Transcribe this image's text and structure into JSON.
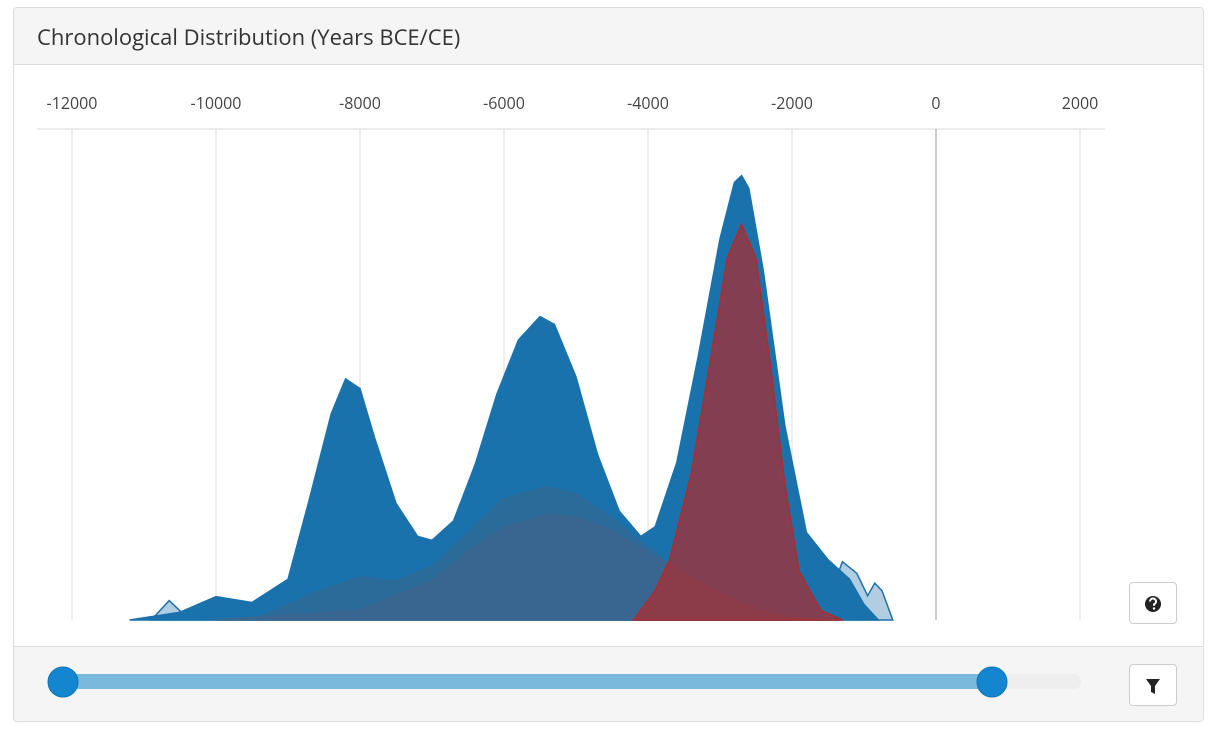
{
  "chart_data": {
    "type": "area",
    "title": "Chronological Distribution (Years BCE/CE)",
    "xlim": [
      -12000,
      2000
    ],
    "xticks": [
      -12000,
      -10000,
      -8000,
      -6000,
      -4000,
      -2000,
      0,
      2000
    ],
    "ylim": [
      0,
      470
    ],
    "grid": true,
    "series": [
      {
        "color": "#1f6fa8",
        "opacity": 0.35,
        "x": [
          -10900,
          -10650,
          -10450,
          -10200,
          -1600,
          -1300,
          -1100,
          -950,
          -850,
          -750,
          -600
        ],
        "values": [
          0,
          20,
          6,
          0,
          0,
          60,
          48,
          25,
          38,
          30,
          0
        ]
      },
      {
        "color": "#1a72ad",
        "opacity": 1,
        "x": [
          -11200,
          -10500,
          -10000,
          -9500,
          -9000,
          -8700,
          -8400,
          -8200,
          -8000,
          -7800,
          -7500,
          -7200,
          -7000,
          -6700,
          -6400,
          -6100,
          -5800,
          -5500,
          -5300,
          -5000,
          -4700,
          -4400,
          -4100,
          -3900,
          -3600,
          -3300,
          -3000,
          -2800,
          -2700,
          -2600,
          -2400,
          -2100,
          -1800,
          -1500,
          -1200,
          -1000,
          -800
        ],
        "values": [
          0,
          8,
          24,
          18,
          42,
          125,
          212,
          248,
          238,
          188,
          120,
          86,
          82,
          102,
          160,
          232,
          288,
          312,
          304,
          250,
          170,
          112,
          86,
          96,
          162,
          272,
          392,
          450,
          457,
          444,
          360,
          200,
          90,
          62,
          42,
          16,
          0
        ]
      },
      {
        "color": "#2d6a98",
        "opacity": 0.9,
        "x": [
          -9500,
          -8500,
          -8000,
          -7500,
          -7000,
          -6500,
          -6000,
          -5400,
          -5000,
          -4500,
          -4000,
          -3500,
          -3000,
          -2500,
          -2000
        ],
        "values": [
          0,
          32,
          44,
          40,
          55,
          90,
          125,
          137,
          130,
          105,
          75,
          45,
          25,
          8,
          0
        ]
      },
      {
        "color": "#3a6690",
        "opacity": 0.9,
        "x": [
          -10000,
          -8000,
          -7000,
          -6500,
          -6000,
          -5400,
          -5000,
          -4500,
          -4000,
          -3500,
          -3000,
          -2500,
          -2000,
          -1500
        ],
        "values": [
          0,
          10,
          40,
          70,
          95,
          109,
          106,
          92,
          70,
          48,
          28,
          12,
          3,
          0
        ]
      },
      {
        "color": "#b02a2a",
        "opacity": 0.7,
        "x": [
          -4200,
          -3900,
          -3700,
          -3400,
          -3100,
          -2900,
          -2700,
          -2500,
          -2300,
          -2100,
          -1900,
          -1600,
          -1300
        ],
        "values": [
          0,
          30,
          62,
          150,
          282,
          372,
          407,
          372,
          262,
          140,
          50,
          10,
          0
        ]
      }
    ]
  }
}
